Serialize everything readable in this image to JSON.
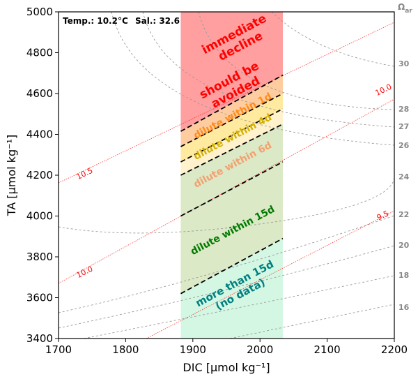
{
  "info": {
    "temp": "Temp.: 10.2°C",
    "sal": "Sal.: 32.6"
  },
  "omega_title": "Ω",
  "omega_sub": "ar",
  "chart_data": {
    "type": "contour",
    "xlabel": "DIC [µmol kg⁻¹]",
    "ylabel": "TA [µmol kg⁻¹]",
    "xlim": [
      1700,
      2200
    ],
    "ylim": [
      3400,
      5000
    ],
    "xticks": [
      "1700",
      "1800",
      "1900",
      "2000",
      "2100",
      "2200"
    ],
    "yticks": [
      "3400",
      "3600",
      "3800",
      "4000",
      "4200",
      "4400",
      "4600",
      "4800",
      "5000"
    ],
    "dic_band": [
      1882,
      2034
    ],
    "zones": [
      {
        "label": "immediate decline",
        "color": "#ff9f9f",
        "label_color": "#ff0000"
      },
      {
        "label": "should be avoided",
        "color": "#ff9f9f",
        "label_color": "#ff0000"
      },
      {
        "label": "dilute within 1d",
        "color": "#ffcca0",
        "label_color": "#ff8c1a"
      },
      {
        "label": "dilute within 4d",
        "color": "#ffeaa0",
        "label_color": "#d4b000"
      },
      {
        "label": "dilute within 6d",
        "color": "#fff2cc",
        "label_color": "#f4a070"
      },
      {
        "label": "dilute within 15d",
        "color": "#dbe9c6",
        "label_color": "#007a00"
      },
      {
        "label": "more than 15d\n(no data)",
        "color": "#d4f7e4",
        "label_color": "#008080"
      }
    ],
    "boundaries": [
      {
        "left": 4415,
        "right": 4690
      },
      {
        "left": 4340,
        "right": 4600
      },
      {
        "left": 4265,
        "right": 4525
      },
      {
        "left": 4200,
        "right": 4450
      },
      {
        "left": 4000,
        "right": 4265
      },
      {
        "left": 3620,
        "right": 3890
      }
    ],
    "omega_levels": [
      "30",
      "28",
      "27",
      "26",
      "24",
      "22",
      "20",
      "18",
      "16"
    ],
    "ph_levels": [
      "10.5",
      "10.0",
      "10.0",
      "9.5"
    ],
    "grid": false
  }
}
